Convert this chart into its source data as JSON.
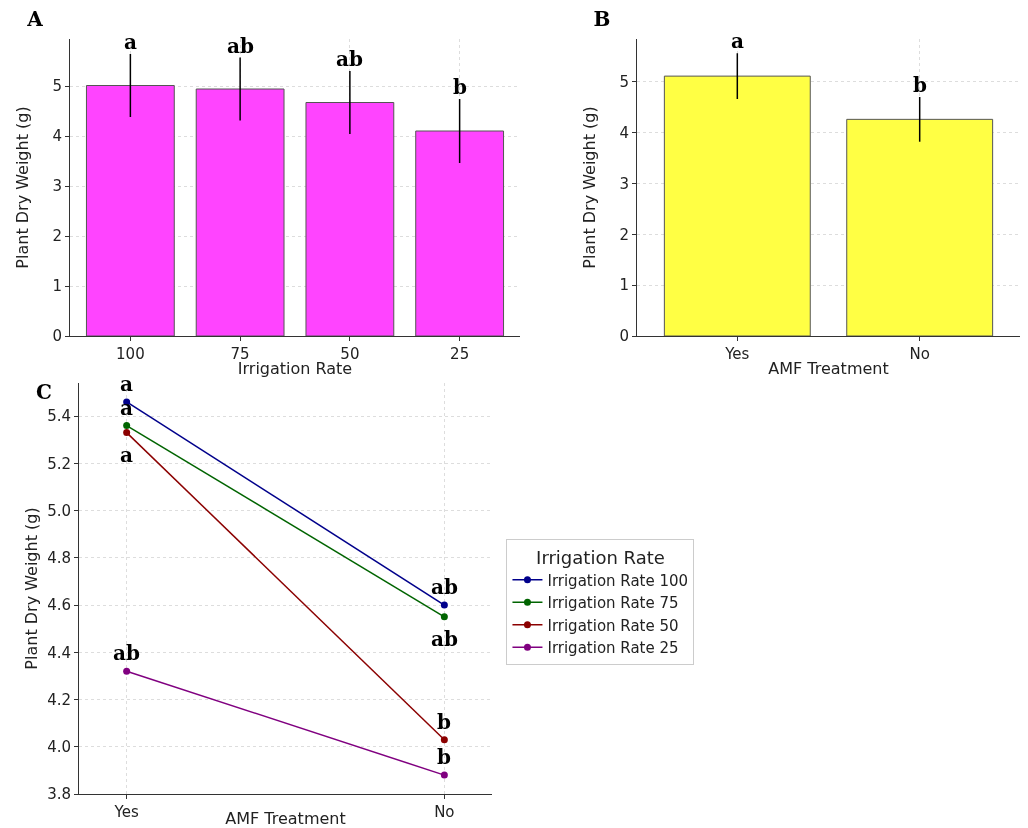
{
  "chart_data": [
    {
      "type": "bar",
      "title": "A",
      "xlabel": "Irrigation Rate",
      "ylabel": "Plant Dry Weight (g)",
      "categories": [
        "100",
        "75",
        "50",
        "25"
      ],
      "values": [
        5.01,
        4.94,
        4.67,
        4.1
      ],
      "errors": [
        0.63,
        0.63,
        0.63,
        0.64
      ],
      "color": "#ff44ff",
      "ylim": [
        0,
        5.94
      ],
      "yticks": [
        0,
        1,
        2,
        3,
        4,
        5
      ],
      "grid": true,
      "legend": false,
      "annotations": [
        "a",
        "ab",
        "ab",
        "b"
      ]
    },
    {
      "type": "bar",
      "title": "B",
      "xlabel": "AMF Treatment",
      "ylabel": "Plant Dry Weight (g)",
      "categories": [
        "Yes",
        "No"
      ],
      "values": [
        5.11,
        4.26
      ],
      "errors": [
        0.45,
        0.44
      ],
      "color": "#ffff44",
      "ylim": [
        0,
        5.84
      ],
      "yticks": [
        0,
        1,
        2,
        3,
        4,
        5
      ],
      "grid": true,
      "legend": false,
      "annotations": [
        "a",
        "b"
      ]
    },
    {
      "type": "line",
      "title": "C",
      "xlabel": "AMF Treatment",
      "ylabel": "Plant Dry Weight (g)",
      "legend_title": "Irrigation Rate",
      "categories": [
        "Yes",
        "No"
      ],
      "ylim": [
        3.8,
        5.54
      ],
      "yticks": [
        {
          "value": 3.8,
          "label": "3.8"
        },
        {
          "value": 4.0,
          "label": "4.0"
        },
        {
          "value": 4.2,
          "label": "4.2"
        },
        {
          "value": 4.4,
          "label": "4.4"
        },
        {
          "value": 4.6,
          "label": "4.6"
        },
        {
          "value": 4.8,
          "label": "4.8"
        },
        {
          "value": 5.0,
          "label": "5.0"
        },
        {
          "value": 5.2,
          "label": "5.2"
        },
        {
          "value": 5.4,
          "label": "5.4"
        }
      ],
      "grid": true,
      "legend": "right",
      "marker": "circle",
      "line_style": "solid",
      "series": [
        {
          "name": "Irrigation Rate 100",
          "color": "#00008b",
          "values": [
            5.46,
            4.6
          ]
        },
        {
          "name": "Irrigation Rate 75",
          "color": "#006400",
          "values": [
            5.36,
            4.55
          ]
        },
        {
          "name": "Irrigation Rate 50",
          "color": "#8b0000",
          "values": [
            5.33,
            4.03
          ]
        },
        {
          "name": "Irrigation Rate 25",
          "color": "#800080",
          "values": [
            4.32,
            3.88
          ]
        }
      ],
      "annotations": [
        "a",
        "a",
        "a",
        "ab",
        "ab",
        "ab",
        "b",
        "b"
      ]
    }
  ]
}
